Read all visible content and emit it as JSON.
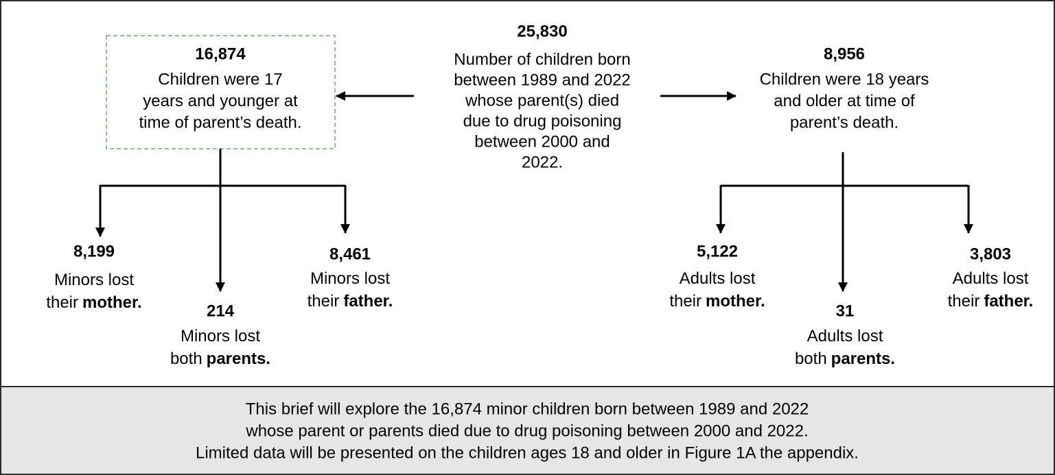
{
  "diagram": {
    "center": {
      "number": "25,830",
      "lines": [
        "Number of children born",
        "between 1989 and 2022",
        "whose parent(s) died",
        "due to drug poisoning",
        "between 2000 and",
        "2022."
      ]
    },
    "left": {
      "number": "16,874",
      "lines": [
        "Children were 17",
        "years and younger at",
        "time of parent’s death."
      ]
    },
    "right": {
      "number": "8,956",
      "lines": [
        "Children were 18 years",
        "and older at time of",
        "parent’s death."
      ]
    },
    "leaves": [
      {
        "number": "8,199",
        "lines": [
          {
            "text": "Minors lost"
          },
          {
            "text": "their",
            "bold": "mother."
          }
        ]
      },
      {
        "number": "214",
        "lines": [
          {
            "text": "Minors lost"
          },
          {
            "text": "both",
            "bold": "parents."
          }
        ]
      },
      {
        "number": "8,461",
        "lines": [
          {
            "text": "Minors lost"
          },
          {
            "text": "their",
            "bold": "father."
          }
        ]
      },
      {
        "number": "5,122",
        "lines": [
          {
            "text": "Adults lost"
          },
          {
            "text": "their",
            "bold": "mother."
          }
        ]
      },
      {
        "number": "31",
        "lines": [
          {
            "text": "Adults lost"
          },
          {
            "text": "both",
            "bold": "parents."
          }
        ]
      },
      {
        "number": "3,803",
        "lines": [
          {
            "text": "Adults lost"
          },
          {
            "text": "their",
            "bold": "father."
          }
        ]
      }
    ]
  },
  "footer": {
    "lines": [
      "This brief will explore the 16,874 minor children born between 1989 and 2022",
      "whose parent or parents died due to drug poisoning between 2000 and 2022.",
      "Limited data will be presented on the children ages 18 and older in Figure 1A the appendix."
    ]
  }
}
